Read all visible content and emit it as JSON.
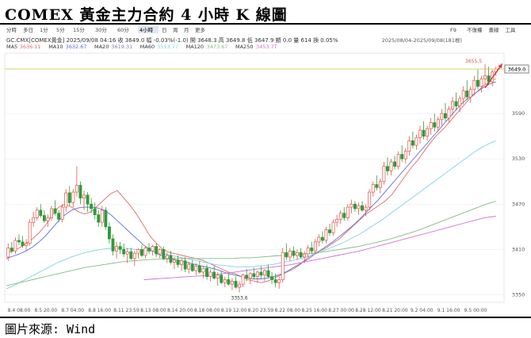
{
  "title": "COMEX 黃金主力合約 4 小時 K 線圖",
  "source": "圖片來源: Wind",
  "toolbar": {
    "tabs": [
      "分時",
      "多日",
      "1分",
      "5分",
      "15分",
      "30分",
      "60分",
      "4小時",
      "日",
      "周",
      "月",
      "更多"
    ],
    "active_tab": "4小時",
    "right_items": [
      "F9",
      "不復權",
      "畫線",
      "工具"
    ]
  },
  "quote_line": "GC.CMX[COMEX黃金]  2025/09/08 04:16  收 3649.0  幅 -0.03%(-1.0)  開 3648.3  高 3649.8  低 3647.9  額 0.0  量 614  換 0.05%",
  "range_label": "2025/08/04-2025/09/08(181根)",
  "ma_legend": [
    {
      "label": "MA5",
      "value": "3636.11",
      "color": "#e36b6b"
    },
    {
      "label": "MA10",
      "value": "3632.67",
      "color": "#5b6fd6"
    },
    {
      "label": "MA20",
      "value": "3619.31",
      "color": "#7f7fbf"
    },
    {
      "label": "MA60",
      "value": "3553.77",
      "color": "#7fd3e8"
    },
    {
      "label": "MA120",
      "value": "3473.67",
      "color": "#7fbf7f"
    },
    {
      "label": "MA250",
      "value": "3453.7T",
      "color": "#d06fd6"
    }
  ],
  "annotations": {
    "high_label": "3655.5",
    "low_label": "3353.6",
    "last_price": "3649.0"
  },
  "colors": {
    "up": "#e8524a",
    "down": "#2f9a3a",
    "last_line": "#c0c030",
    "arrow": "#e03030"
  },
  "chart_data": {
    "type": "candlestick",
    "ylim": [
      3340,
      3670
    ],
    "yticks": [
      3350,
      3410,
      3470,
      3530,
      3590
    ],
    "xtick_labels": [
      "8.4 08:00",
      "8.5 20:00",
      "8.7 04:00",
      "8.8 16:00",
      "8.11 23:59",
      "8.13 08:00",
      "8.14 20:00",
      "8.18 08:00",
      "8.19 12:00",
      "8.20 23:59",
      "8.22 08:00",
      "8.25 16:00",
      "8.27 00:00",
      "8.28 12:00",
      "8.21 20:00",
      "9.2 04:00",
      "9.1 16:00",
      "9.5 00:00"
    ],
    "ohlc": [
      [
        3400,
        3418,
        3395,
        3412
      ],
      [
        3412,
        3420,
        3405,
        3408
      ],
      [
        3408,
        3426,
        3404,
        3422
      ],
      [
        3422,
        3430,
        3416,
        3420
      ],
      [
        3420,
        3428,
        3412,
        3415
      ],
      [
        3415,
        3424,
        3408,
        3418
      ],
      [
        3418,
        3450,
        3415,
        3446
      ],
      [
        3446,
        3460,
        3440,
        3452
      ],
      [
        3452,
        3466,
        3448,
        3462
      ],
      [
        3462,
        3470,
        3452,
        3455
      ],
      [
        3455,
        3462,
        3445,
        3448
      ],
      [
        3448,
        3456,
        3440,
        3452
      ],
      [
        3452,
        3468,
        3448,
        3464
      ],
      [
        3464,
        3475,
        3455,
        3458
      ],
      [
        3458,
        3462,
        3446,
        3450
      ],
      [
        3450,
        3470,
        3446,
        3466
      ],
      [
        3466,
        3490,
        3460,
        3485
      ],
      [
        3485,
        3494,
        3468,
        3472
      ],
      [
        3472,
        3490,
        3466,
        3486
      ],
      [
        3486,
        3520,
        3480,
        3495
      ],
      [
        3495,
        3500,
        3470,
        3478
      ],
      [
        3478,
        3488,
        3462,
        3482
      ],
      [
        3482,
        3486,
        3460,
        3470
      ],
      [
        3470,
        3478,
        3458,
        3464
      ],
      [
        3464,
        3472,
        3450,
        3456
      ],
      [
        3456,
        3462,
        3440,
        3446
      ],
      [
        3446,
        3468,
        3440,
        3462
      ],
      [
        3462,
        3466,
        3436,
        3440
      ],
      [
        3440,
        3446,
        3418,
        3424
      ],
      [
        3424,
        3430,
        3402,
        3408
      ],
      [
        3408,
        3420,
        3398,
        3414
      ],
      [
        3414,
        3420,
        3404,
        3410
      ],
      [
        3410,
        3418,
        3400,
        3404
      ],
      [
        3404,
        3412,
        3392,
        3407
      ],
      [
        3407,
        3412,
        3396,
        3398
      ],
      [
        3398,
        3408,
        3388,
        3405
      ],
      [
        3405,
        3412,
        3398,
        3410
      ],
      [
        3410,
        3416,
        3400,
        3402
      ],
      [
        3402,
        3414,
        3398,
        3412
      ],
      [
        3412,
        3418,
        3404,
        3408
      ],
      [
        3408,
        3416,
        3402,
        3414
      ],
      [
        3414,
        3418,
        3400,
        3404
      ],
      [
        3404,
        3412,
        3398,
        3410
      ],
      [
        3410,
        3414,
        3396,
        3398
      ],
      [
        3398,
        3406,
        3392,
        3402
      ],
      [
        3402,
        3408,
        3390,
        3393
      ],
      [
        3393,
        3400,
        3384,
        3396
      ],
      [
        3396,
        3402,
        3386,
        3390
      ],
      [
        3390,
        3398,
        3382,
        3395
      ],
      [
        3395,
        3400,
        3380,
        3384
      ],
      [
        3384,
        3394,
        3378,
        3390
      ],
      [
        3390,
        3396,
        3380,
        3382
      ],
      [
        3382,
        3392,
        3376,
        3388
      ],
      [
        3388,
        3395,
        3378,
        3380
      ],
      [
        3380,
        3388,
        3372,
        3385
      ],
      [
        3385,
        3390,
        3370,
        3374
      ],
      [
        3374,
        3384,
        3368,
        3380
      ],
      [
        3380,
        3388,
        3370,
        3372
      ],
      [
        3372,
        3380,
        3362,
        3376
      ],
      [
        3376,
        3382,
        3364,
        3366
      ],
      [
        3366,
        3374,
        3360,
        3370
      ],
      [
        3370,
        3378,
        3362,
        3364
      ],
      [
        3364,
        3372,
        3356,
        3368
      ],
      [
        3368,
        3374,
        3358,
        3360
      ],
      [
        3360,
        3368,
        3353,
        3364
      ],
      [
        3364,
        3378,
        3360,
        3376
      ],
      [
        3376,
        3384,
        3368,
        3372
      ],
      [
        3372,
        3380,
        3364,
        3378
      ],
      [
        3378,
        3386,
        3370,
        3374
      ],
      [
        3374,
        3382,
        3366,
        3380
      ],
      [
        3380,
        3388,
        3372,
        3376
      ],
      [
        3376,
        3384,
        3368,
        3382
      ],
      [
        3382,
        3390,
        3372,
        3374
      ],
      [
        3374,
        3380,
        3364,
        3370
      ],
      [
        3370,
        3378,
        3360,
        3366
      ],
      [
        3366,
        3374,
        3358,
        3370
      ],
      [
        3370,
        3412,
        3366,
        3406
      ],
      [
        3406,
        3418,
        3396,
        3400
      ],
      [
        3400,
        3412,
        3394,
        3408
      ],
      [
        3408,
        3414,
        3398,
        3402
      ],
      [
        3402,
        3410,
        3396,
        3406
      ],
      [
        3406,
        3412,
        3398,
        3400
      ],
      [
        3400,
        3408,
        3392,
        3404
      ],
      [
        3404,
        3416,
        3400,
        3412
      ],
      [
        3412,
        3420,
        3404,
        3408
      ],
      [
        3408,
        3424,
        3404,
        3420
      ],
      [
        3420,
        3430,
        3414,
        3426
      ],
      [
        3426,
        3434,
        3418,
        3422
      ],
      [
        3422,
        3440,
        3418,
        3436
      ],
      [
        3436,
        3444,
        3428,
        3432
      ],
      [
        3432,
        3450,
        3428,
        3446
      ],
      [
        3446,
        3456,
        3440,
        3450
      ],
      [
        3450,
        3462,
        3444,
        3458
      ],
      [
        3458,
        3466,
        3448,
        3452
      ],
      [
        3452,
        3470,
        3448,
        3466
      ],
      [
        3466,
        3476,
        3458,
        3470
      ],
      [
        3470,
        3474,
        3460,
        3464
      ],
      [
        3464,
        3472,
        3456,
        3468
      ],
      [
        3468,
        3474,
        3460,
        3462
      ],
      [
        3462,
        3470,
        3454,
        3466
      ],
      [
        3466,
        3490,
        3462,
        3486
      ],
      [
        3486,
        3500,
        3480,
        3496
      ],
      [
        3496,
        3508,
        3488,
        3492
      ],
      [
        3492,
        3504,
        3484,
        3500
      ],
      [
        3500,
        3526,
        3496,
        3520
      ],
      [
        3520,
        3532,
        3508,
        3514
      ],
      [
        3514,
        3530,
        3508,
        3526
      ],
      [
        3526,
        3534,
        3516,
        3520
      ],
      [
        3520,
        3540,
        3516,
        3536
      ],
      [
        3536,
        3548,
        3526,
        3530
      ],
      [
        3530,
        3544,
        3524,
        3540
      ],
      [
        3540,
        3560,
        3534,
        3554
      ],
      [
        3554,
        3566,
        3544,
        3548
      ],
      [
        3548,
        3562,
        3542,
        3558
      ],
      [
        3558,
        3574,
        3550,
        3568
      ],
      [
        3568,
        3580,
        3556,
        3560
      ],
      [
        3560,
        3574,
        3554,
        3570
      ],
      [
        3570,
        3584,
        3562,
        3578
      ],
      [
        3578,
        3590,
        3566,
        3572
      ],
      [
        3572,
        3586,
        3566,
        3582
      ],
      [
        3582,
        3596,
        3574,
        3590
      ],
      [
        3590,
        3604,
        3580,
        3584
      ],
      [
        3584,
        3600,
        3578,
        3596
      ],
      [
        3596,
        3612,
        3588,
        3606
      ],
      [
        3606,
        3618,
        3594,
        3600
      ],
      [
        3600,
        3614,
        3592,
        3610
      ],
      [
        3610,
        3626,
        3602,
        3620
      ],
      [
        3620,
        3634,
        3608,
        3612
      ],
      [
        3612,
        3626,
        3604,
        3622
      ],
      [
        3622,
        3640,
        3614,
        3634
      ],
      [
        3634,
        3648,
        3622,
        3626
      ],
      [
        3626,
        3640,
        3618,
        3636
      ],
      [
        3636,
        3655.5,
        3628,
        3640
      ],
      [
        3640,
        3652,
        3628,
        3632
      ],
      [
        3632,
        3648,
        3626,
        3645
      ],
      [
        3645,
        3652,
        3640,
        3649
      ]
    ],
    "ma": {
      "MA5": [
        3405,
        3408,
        3412,
        3418,
        3424,
        3432,
        3442,
        3455,
        3466,
        3470,
        3466,
        3460,
        3457,
        3460,
        3468,
        3476,
        3484,
        3488,
        3478,
        3468,
        3456,
        3442,
        3428,
        3418,
        3410,
        3406,
        3404,
        3402,
        3400,
        3398,
        3396,
        3392,
        3388,
        3384,
        3380,
        3378,
        3374,
        3370,
        3368,
        3366,
        3368,
        3372,
        3376,
        3380,
        3384,
        3390,
        3398,
        3404,
        3408,
        3412,
        3418,
        3424,
        3432,
        3440,
        3448,
        3456,
        3462,
        3468,
        3474,
        3482,
        3494,
        3506,
        3518,
        3528,
        3540,
        3552,
        3562,
        3570,
        3580,
        3590,
        3600,
        3610,
        3618,
        3626,
        3632,
        3636
      ],
      "MA10": [
        3398,
        3401,
        3404,
        3408,
        3413,
        3420,
        3428,
        3438,
        3448,
        3456,
        3462,
        3465,
        3466,
        3466,
        3465,
        3462,
        3456,
        3448,
        3440,
        3432,
        3424,
        3416,
        3410,
        3405,
        3401,
        3398,
        3396,
        3394,
        3392,
        3390,
        3388,
        3386,
        3384,
        3381,
        3378,
        3376,
        3374,
        3372,
        3371,
        3371,
        3372,
        3374,
        3377,
        3381,
        3386,
        3391,
        3396,
        3402,
        3408,
        3414,
        3420,
        3427,
        3434,
        3441,
        3449,
        3458,
        3467,
        3476,
        3486,
        3496,
        3506,
        3516,
        3526,
        3536,
        3546,
        3556,
        3566,
        3576,
        3586,
        3596,
        3605,
        3612,
        3618,
        3624,
        3629,
        3632
      ],
      "MA60": [
        3358,
        3362,
        3367,
        3372,
        3377,
        3382,
        3387,
        3392,
        3396,
        3400,
        3403,
        3406,
        3408,
        3410,
        3411,
        3412,
        3412,
        3411,
        3410,
        3409,
        3408,
        3406,
        3404,
        3402,
        3400,
        3398,
        3396,
        3394,
        3392,
        3390,
        3389,
        3388,
        3387,
        3387,
        3387,
        3388,
        3389,
        3390,
        3392,
        3394,
        3396,
        3398,
        3401,
        3404,
        3408,
        3412,
        3416,
        3420,
        3425,
        3430,
        3436,
        3442,
        3448,
        3455,
        3462,
        3469,
        3476,
        3483,
        3490,
        3497,
        3504,
        3511,
        3518,
        3525,
        3532,
        3539,
        3545,
        3550,
        3554
      ],
      "MA120": [
        3362,
        3365,
        3368,
        3371,
        3374,
        3377,
        3380,
        3383,
        3386,
        3388,
        3390,
        3392,
        3394,
        3395,
        3396,
        3397,
        3397,
        3398,
        3398,
        3398,
        3398,
        3398,
        3398,
        3398,
        3399,
        3399,
        3400,
        3401,
        3402,
        3403,
        3404,
        3405,
        3406,
        3408,
        3410,
        3412,
        3414,
        3417,
        3420,
        3423,
        3427,
        3431,
        3435,
        3440,
        3445,
        3450,
        3455,
        3460,
        3465,
        3470,
        3474
      ],
      "MA250": [
        3370,
        3371,
        3372,
        3373,
        3374,
        3375,
        3376,
        3378,
        3380,
        3382,
        3384,
        3386,
        3388,
        3390,
        3393,
        3396,
        3399,
        3402,
        3405,
        3408,
        3412,
        3416,
        3420,
        3424,
        3428,
        3432,
        3436,
        3440,
        3444,
        3448,
        3452,
        3454
      ]
    }
  }
}
